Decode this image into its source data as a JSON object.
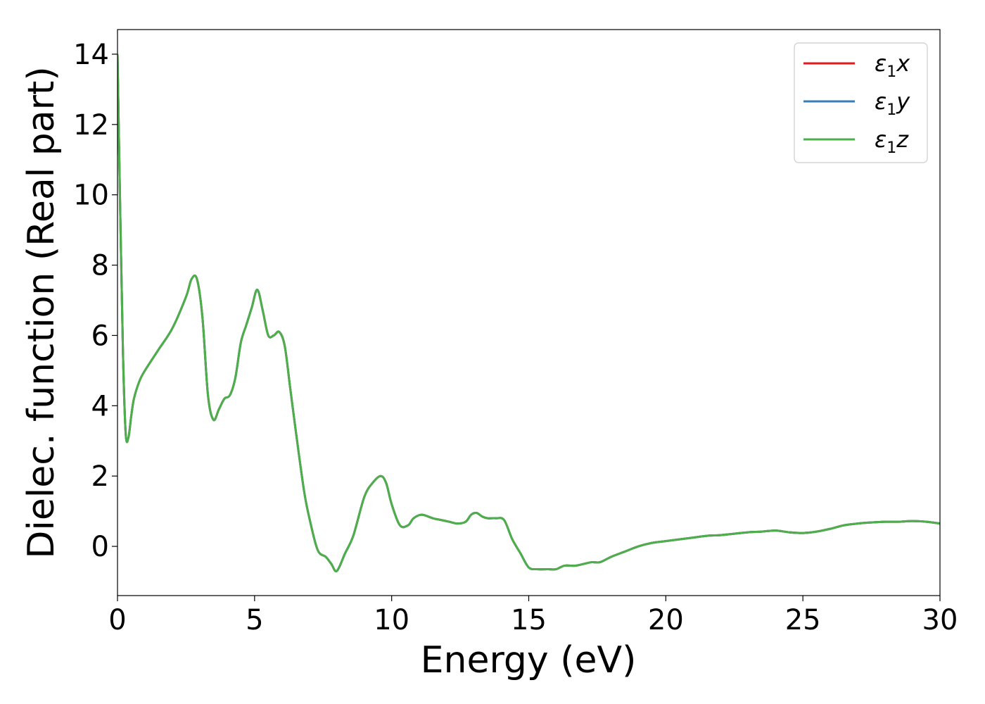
{
  "chart_data": {
    "type": "line",
    "xlabel": "Energy (eV)",
    "ylabel": "Dielec. function (Real part)",
    "xlim": [
      0,
      30
    ],
    "ylim": [
      -1.4,
      14.7
    ],
    "xticks": [
      0,
      5,
      10,
      15,
      20,
      25,
      30
    ],
    "yticks": [
      0,
      2,
      4,
      6,
      8,
      10,
      12,
      14
    ],
    "grid": false,
    "legend_position": "top-right",
    "series": [
      {
        "name": "ε₁x",
        "symbol": "ε",
        "sub": "1",
        "suffix": "x",
        "color": "#e41a1c",
        "x": [
          0,
          0.1,
          0.2,
          0.3,
          0.4,
          0.5,
          0.6,
          0.8,
          1.0,
          1.5,
          2.0,
          2.5,
          2.7,
          2.9,
          3.1,
          3.3,
          3.5,
          3.7,
          3.9,
          4.1,
          4.3,
          4.5,
          4.7,
          4.9,
          5.1,
          5.3,
          5.5,
          5.7,
          5.9,
          6.1,
          6.3,
          6.5,
          6.8,
          7.0,
          7.3,
          7.6,
          7.8,
          8.0,
          8.3,
          8.6,
          9.0,
          9.3,
          9.6,
          9.8,
          10.0,
          10.3,
          10.6,
          10.8,
          11.1,
          11.5,
          11.8,
          12.1,
          12.4,
          12.7,
          12.9,
          13.1,
          13.3,
          13.5,
          13.8,
          14.1,
          14.4,
          14.7,
          15.0,
          15.3,
          15.7,
          16.0,
          16.3,
          16.7,
          17.0,
          17.3,
          17.6,
          18.0,
          18.5,
          19.0,
          19.5,
          20.0,
          20.5,
          21.0,
          21.5,
          22.0,
          22.5,
          23.0,
          23.5,
          24.0,
          24.5,
          25.0,
          25.5,
          26.0,
          26.5,
          27.0,
          27.5,
          28.0,
          28.5,
          29.0,
          29.5,
          30.0
        ],
        "y": [
          14.0,
          9.5,
          5.5,
          3.2,
          3.1,
          3.7,
          4.2,
          4.7,
          5.0,
          5.6,
          6.2,
          7.1,
          7.6,
          7.6,
          6.5,
          4.3,
          3.6,
          3.9,
          4.2,
          4.3,
          4.8,
          5.8,
          6.3,
          6.8,
          7.3,
          6.7,
          6.0,
          6.0,
          6.1,
          5.7,
          4.5,
          3.3,
          1.6,
          0.8,
          -0.1,
          -0.3,
          -0.5,
          -0.7,
          -0.2,
          0.3,
          1.4,
          1.8,
          2.0,
          1.8,
          1.2,
          0.6,
          0.6,
          0.8,
          0.9,
          0.8,
          0.75,
          0.7,
          0.65,
          0.7,
          0.9,
          0.95,
          0.85,
          0.8,
          0.8,
          0.75,
          0.2,
          -0.2,
          -0.6,
          -0.65,
          -0.65,
          -0.65,
          -0.55,
          -0.55,
          -0.5,
          -0.45,
          -0.45,
          -0.3,
          -0.15,
          0.0,
          0.1,
          0.15,
          0.2,
          0.25,
          0.3,
          0.32,
          0.36,
          0.4,
          0.42,
          0.45,
          0.4,
          0.38,
          0.42,
          0.5,
          0.6,
          0.65,
          0.68,
          0.7,
          0.7,
          0.72,
          0.7,
          0.65
        ]
      },
      {
        "name": "ε₁y",
        "symbol": "ε",
        "sub": "1",
        "suffix": "y",
        "color": "#377eb8",
        "x": [
          0,
          0.1,
          0.2,
          0.3,
          0.4,
          0.5,
          0.6,
          0.8,
          1.0,
          1.5,
          2.0,
          2.5,
          2.7,
          2.9,
          3.1,
          3.3,
          3.5,
          3.7,
          3.9,
          4.1,
          4.3,
          4.5,
          4.7,
          4.9,
          5.1,
          5.3,
          5.5,
          5.7,
          5.9,
          6.1,
          6.3,
          6.5,
          6.8,
          7.0,
          7.3,
          7.6,
          7.8,
          8.0,
          8.3,
          8.6,
          9.0,
          9.3,
          9.6,
          9.8,
          10.0,
          10.3,
          10.6,
          10.8,
          11.1,
          11.5,
          11.8,
          12.1,
          12.4,
          12.7,
          12.9,
          13.1,
          13.3,
          13.5,
          13.8,
          14.1,
          14.4,
          14.7,
          15.0,
          15.3,
          15.7,
          16.0,
          16.3,
          16.7,
          17.0,
          17.3,
          17.6,
          18.0,
          18.5,
          19.0,
          19.5,
          20.0,
          20.5,
          21.0,
          21.5,
          22.0,
          22.5,
          23.0,
          23.5,
          24.0,
          24.5,
          25.0,
          25.5,
          26.0,
          26.5,
          27.0,
          27.5,
          28.0,
          28.5,
          29.0,
          29.5,
          30.0
        ],
        "y": [
          14.0,
          9.5,
          5.5,
          3.2,
          3.1,
          3.7,
          4.2,
          4.7,
          5.0,
          5.6,
          6.2,
          7.1,
          7.6,
          7.6,
          6.5,
          4.3,
          3.6,
          3.9,
          4.2,
          4.3,
          4.8,
          5.8,
          6.3,
          6.8,
          7.3,
          6.7,
          6.0,
          6.0,
          6.1,
          5.7,
          4.5,
          3.3,
          1.6,
          0.8,
          -0.1,
          -0.3,
          -0.5,
          -0.7,
          -0.2,
          0.3,
          1.4,
          1.8,
          2.0,
          1.8,
          1.2,
          0.6,
          0.6,
          0.8,
          0.9,
          0.8,
          0.75,
          0.7,
          0.65,
          0.7,
          0.9,
          0.95,
          0.85,
          0.8,
          0.8,
          0.75,
          0.2,
          -0.2,
          -0.6,
          -0.65,
          -0.65,
          -0.65,
          -0.55,
          -0.55,
          -0.5,
          -0.45,
          -0.45,
          -0.3,
          -0.15,
          0.0,
          0.1,
          0.15,
          0.2,
          0.25,
          0.3,
          0.32,
          0.36,
          0.4,
          0.42,
          0.45,
          0.4,
          0.38,
          0.42,
          0.5,
          0.6,
          0.65,
          0.68,
          0.7,
          0.7,
          0.72,
          0.7,
          0.65
        ]
      },
      {
        "name": "ε₁z",
        "symbol": "ε",
        "sub": "1",
        "suffix": "z",
        "color": "#4daf4a",
        "x": [
          0,
          0.1,
          0.2,
          0.3,
          0.4,
          0.5,
          0.6,
          0.8,
          1.0,
          1.5,
          2.0,
          2.5,
          2.7,
          2.9,
          3.1,
          3.3,
          3.5,
          3.7,
          3.9,
          4.1,
          4.3,
          4.5,
          4.7,
          4.9,
          5.1,
          5.3,
          5.5,
          5.7,
          5.9,
          6.1,
          6.3,
          6.5,
          6.8,
          7.0,
          7.3,
          7.6,
          7.8,
          8.0,
          8.3,
          8.6,
          9.0,
          9.3,
          9.6,
          9.8,
          10.0,
          10.3,
          10.6,
          10.8,
          11.1,
          11.5,
          11.8,
          12.1,
          12.4,
          12.7,
          12.9,
          13.1,
          13.3,
          13.5,
          13.8,
          14.1,
          14.4,
          14.7,
          15.0,
          15.3,
          15.7,
          16.0,
          16.3,
          16.7,
          17.0,
          17.3,
          17.6,
          18.0,
          18.5,
          19.0,
          19.5,
          20.0,
          20.5,
          21.0,
          21.5,
          22.0,
          22.5,
          23.0,
          23.5,
          24.0,
          24.5,
          25.0,
          25.5,
          26.0,
          26.5,
          27.0,
          27.5,
          28.0,
          28.5,
          29.0,
          29.5,
          30.0
        ],
        "y": [
          14.0,
          9.5,
          5.5,
          3.2,
          3.1,
          3.7,
          4.2,
          4.7,
          5.0,
          5.6,
          6.2,
          7.1,
          7.6,
          7.6,
          6.5,
          4.3,
          3.6,
          3.9,
          4.2,
          4.3,
          4.8,
          5.8,
          6.3,
          6.8,
          7.3,
          6.7,
          6.0,
          6.0,
          6.1,
          5.7,
          4.5,
          3.3,
          1.6,
          0.8,
          -0.1,
          -0.3,
          -0.5,
          -0.7,
          -0.2,
          0.3,
          1.4,
          1.8,
          2.0,
          1.8,
          1.2,
          0.6,
          0.6,
          0.8,
          0.9,
          0.8,
          0.75,
          0.7,
          0.65,
          0.7,
          0.9,
          0.95,
          0.85,
          0.8,
          0.8,
          0.75,
          0.2,
          -0.2,
          -0.6,
          -0.65,
          -0.65,
          -0.65,
          -0.55,
          -0.55,
          -0.5,
          -0.45,
          -0.45,
          -0.3,
          -0.15,
          0.0,
          0.1,
          0.15,
          0.2,
          0.25,
          0.3,
          0.32,
          0.36,
          0.4,
          0.42,
          0.45,
          0.4,
          0.38,
          0.42,
          0.5,
          0.6,
          0.65,
          0.68,
          0.7,
          0.7,
          0.72,
          0.7,
          0.65
        ]
      }
    ]
  }
}
